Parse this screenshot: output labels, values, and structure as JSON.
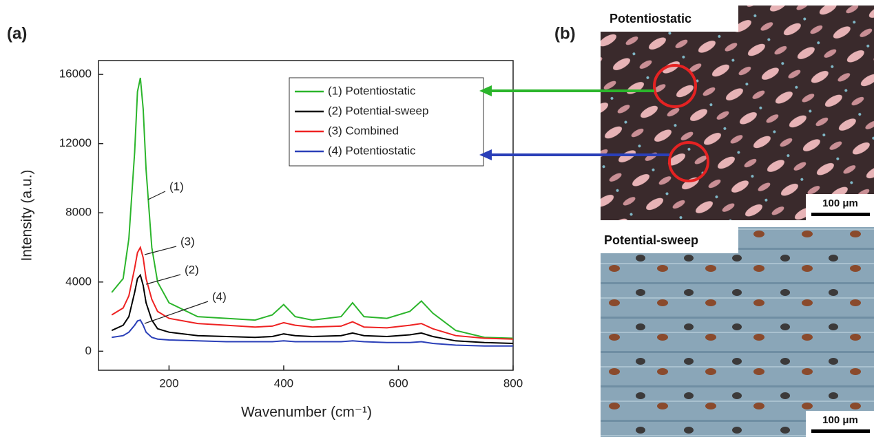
{
  "chart_data": {
    "type": "line",
    "panel_labels": [
      "(a)",
      "(b)"
    ],
    "xlabel": "Wavenumber (cm⁻¹)",
    "ylabel": "Intensity (a.u.)",
    "x": [
      100,
      120,
      130,
      140,
      145,
      150,
      155,
      160,
      170,
      180,
      200,
      250,
      300,
      350,
      380,
      400,
      420,
      450,
      500,
      520,
      540,
      580,
      620,
      640,
      660,
      700,
      750,
      800
    ],
    "series": [
      {
        "name": "(1) Potentiostatic",
        "color": "#2bb52b",
        "values": [
          3400,
          4200,
          6500,
          11500,
          15000,
          15800,
          14000,
          10500,
          6000,
          4000,
          2800,
          2000,
          1900,
          1800,
          2100,
          2700,
          2000,
          1800,
          2000,
          2800,
          2000,
          1900,
          2300,
          2900,
          2200,
          1200,
          800,
          750
        ]
      },
      {
        "name": "(2) Potential-sweep",
        "color": "#000000",
        "values": [
          1200,
          1500,
          2000,
          3400,
          4200,
          4400,
          3800,
          2800,
          1800,
          1300,
          1100,
          900,
          850,
          800,
          850,
          1000,
          900,
          850,
          900,
          1050,
          900,
          850,
          950,
          1050,
          850,
          600,
          500,
          450
        ]
      },
      {
        "name": "(3) Combined",
        "color": "#ee2222",
        "values": [
          2100,
          2500,
          3200,
          4800,
          5700,
          6000,
          5400,
          4200,
          3000,
          2300,
          1900,
          1600,
          1500,
          1400,
          1450,
          1650,
          1500,
          1400,
          1450,
          1700,
          1400,
          1350,
          1500,
          1600,
          1300,
          900,
          750,
          700
        ]
      },
      {
        "name": "(4) Potentiostatic",
        "color": "#2a3fb8",
        "values": [
          800,
          900,
          1100,
          1500,
          1750,
          1800,
          1500,
          1100,
          800,
          700,
          650,
          600,
          550,
          550,
          550,
          600,
          550,
          550,
          550,
          600,
          550,
          500,
          500,
          550,
          450,
          350,
          300,
          300
        ]
      }
    ],
    "annotations": [
      "(1)",
      "(3)",
      "(2)",
      "(4)"
    ],
    "xlim": [
      77,
      800
    ],
    "xticks": [
      200,
      400,
      600,
      800
    ],
    "ylim": [
      -1100,
      16800
    ],
    "yticks": [
      0,
      4000,
      8000,
      12000,
      16000
    ],
    "images": [
      {
        "label": "Potentiostatic",
        "scale_bar": "100 μm"
      },
      {
        "label": "Potential-sweep",
        "scale_bar": "100 μm"
      }
    ]
  }
}
